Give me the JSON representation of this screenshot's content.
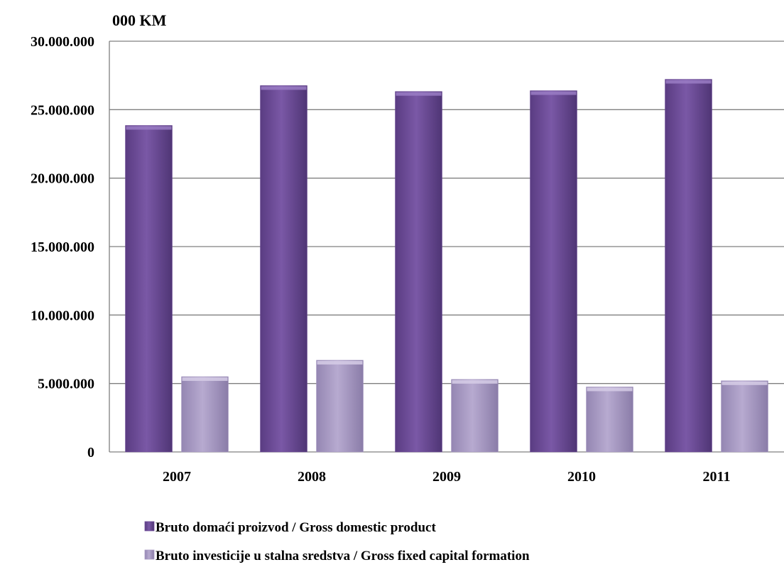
{
  "chart_data": {
    "type": "bar",
    "title": "",
    "unit_label": "000 KM",
    "xlabel": "",
    "ylabel": "",
    "categories": [
      "2007",
      "2008",
      "2009",
      "2010",
      "2011"
    ],
    "series": [
      {
        "name": "Bruto domaći proizvod / Gross domestic product",
        "values": [
          23850000,
          26760000,
          26330000,
          26390000,
          27220000
        ],
        "color": "#6f4d99"
      },
      {
        "name": "Bruto investicije u stalna sredstva / Gross fixed capital formation",
        "values": [
          5500000,
          6700000,
          5300000,
          4750000,
          5200000
        ],
        "color": "#a99bc4"
      }
    ],
    "ylim": [
      0,
      30000000
    ],
    "y_ticks": [
      0,
      5000000,
      10000000,
      15000000,
      20000000,
      25000000,
      30000000
    ],
    "y_tick_labels": [
      "0",
      "5.000.000",
      "10.000.000",
      "15.000.000",
      "20.000.000",
      "25.000.000",
      "30.000.000"
    ],
    "grid": true,
    "legend_position": "bottom"
  }
}
